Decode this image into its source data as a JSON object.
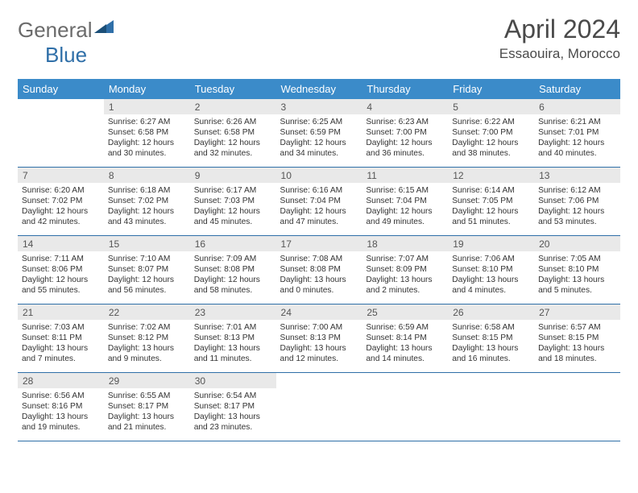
{
  "brand": {
    "part1": "General",
    "part2": "Blue"
  },
  "title": "April 2024",
  "location": "Essaouira, Morocco",
  "colors": {
    "header_bg": "#3b8bc9",
    "header_text": "#ffffff",
    "daynum_bg": "#e9e9e9",
    "border": "#2f6fa8",
    "text": "#333333",
    "title_color": "#4a4a4a"
  },
  "dow": [
    "Sunday",
    "Monday",
    "Tuesday",
    "Wednesday",
    "Thursday",
    "Friday",
    "Saturday"
  ],
  "weeks": [
    [
      {
        "n": "",
        "rise": "",
        "set": "",
        "dl1": "",
        "dl2": "",
        "empty": true
      },
      {
        "n": "1",
        "rise": "Sunrise: 6:27 AM",
        "set": "Sunset: 6:58 PM",
        "dl1": "Daylight: 12 hours",
        "dl2": "and 30 minutes."
      },
      {
        "n": "2",
        "rise": "Sunrise: 6:26 AM",
        "set": "Sunset: 6:58 PM",
        "dl1": "Daylight: 12 hours",
        "dl2": "and 32 minutes."
      },
      {
        "n": "3",
        "rise": "Sunrise: 6:25 AM",
        "set": "Sunset: 6:59 PM",
        "dl1": "Daylight: 12 hours",
        "dl2": "and 34 minutes."
      },
      {
        "n": "4",
        "rise": "Sunrise: 6:23 AM",
        "set": "Sunset: 7:00 PM",
        "dl1": "Daylight: 12 hours",
        "dl2": "and 36 minutes."
      },
      {
        "n": "5",
        "rise": "Sunrise: 6:22 AM",
        "set": "Sunset: 7:00 PM",
        "dl1": "Daylight: 12 hours",
        "dl2": "and 38 minutes."
      },
      {
        "n": "6",
        "rise": "Sunrise: 6:21 AM",
        "set": "Sunset: 7:01 PM",
        "dl1": "Daylight: 12 hours",
        "dl2": "and 40 minutes."
      }
    ],
    [
      {
        "n": "7",
        "rise": "Sunrise: 6:20 AM",
        "set": "Sunset: 7:02 PM",
        "dl1": "Daylight: 12 hours",
        "dl2": "and 42 minutes."
      },
      {
        "n": "8",
        "rise": "Sunrise: 6:18 AM",
        "set": "Sunset: 7:02 PM",
        "dl1": "Daylight: 12 hours",
        "dl2": "and 43 minutes."
      },
      {
        "n": "9",
        "rise": "Sunrise: 6:17 AM",
        "set": "Sunset: 7:03 PM",
        "dl1": "Daylight: 12 hours",
        "dl2": "and 45 minutes."
      },
      {
        "n": "10",
        "rise": "Sunrise: 6:16 AM",
        "set": "Sunset: 7:04 PM",
        "dl1": "Daylight: 12 hours",
        "dl2": "and 47 minutes."
      },
      {
        "n": "11",
        "rise": "Sunrise: 6:15 AM",
        "set": "Sunset: 7:04 PM",
        "dl1": "Daylight: 12 hours",
        "dl2": "and 49 minutes."
      },
      {
        "n": "12",
        "rise": "Sunrise: 6:14 AM",
        "set": "Sunset: 7:05 PM",
        "dl1": "Daylight: 12 hours",
        "dl2": "and 51 minutes."
      },
      {
        "n": "13",
        "rise": "Sunrise: 6:12 AM",
        "set": "Sunset: 7:06 PM",
        "dl1": "Daylight: 12 hours",
        "dl2": "and 53 minutes."
      }
    ],
    [
      {
        "n": "14",
        "rise": "Sunrise: 7:11 AM",
        "set": "Sunset: 8:06 PM",
        "dl1": "Daylight: 12 hours",
        "dl2": "and 55 minutes."
      },
      {
        "n": "15",
        "rise": "Sunrise: 7:10 AM",
        "set": "Sunset: 8:07 PM",
        "dl1": "Daylight: 12 hours",
        "dl2": "and 56 minutes."
      },
      {
        "n": "16",
        "rise": "Sunrise: 7:09 AM",
        "set": "Sunset: 8:08 PM",
        "dl1": "Daylight: 12 hours",
        "dl2": "and 58 minutes."
      },
      {
        "n": "17",
        "rise": "Sunrise: 7:08 AM",
        "set": "Sunset: 8:08 PM",
        "dl1": "Daylight: 13 hours",
        "dl2": "and 0 minutes."
      },
      {
        "n": "18",
        "rise": "Sunrise: 7:07 AM",
        "set": "Sunset: 8:09 PM",
        "dl1": "Daylight: 13 hours",
        "dl2": "and 2 minutes."
      },
      {
        "n": "19",
        "rise": "Sunrise: 7:06 AM",
        "set": "Sunset: 8:10 PM",
        "dl1": "Daylight: 13 hours",
        "dl2": "and 4 minutes."
      },
      {
        "n": "20",
        "rise": "Sunrise: 7:05 AM",
        "set": "Sunset: 8:10 PM",
        "dl1": "Daylight: 13 hours",
        "dl2": "and 5 minutes."
      }
    ],
    [
      {
        "n": "21",
        "rise": "Sunrise: 7:03 AM",
        "set": "Sunset: 8:11 PM",
        "dl1": "Daylight: 13 hours",
        "dl2": "and 7 minutes."
      },
      {
        "n": "22",
        "rise": "Sunrise: 7:02 AM",
        "set": "Sunset: 8:12 PM",
        "dl1": "Daylight: 13 hours",
        "dl2": "and 9 minutes."
      },
      {
        "n": "23",
        "rise": "Sunrise: 7:01 AM",
        "set": "Sunset: 8:13 PM",
        "dl1": "Daylight: 13 hours",
        "dl2": "and 11 minutes."
      },
      {
        "n": "24",
        "rise": "Sunrise: 7:00 AM",
        "set": "Sunset: 8:13 PM",
        "dl1": "Daylight: 13 hours",
        "dl2": "and 12 minutes."
      },
      {
        "n": "25",
        "rise": "Sunrise: 6:59 AM",
        "set": "Sunset: 8:14 PM",
        "dl1": "Daylight: 13 hours",
        "dl2": "and 14 minutes."
      },
      {
        "n": "26",
        "rise": "Sunrise: 6:58 AM",
        "set": "Sunset: 8:15 PM",
        "dl1": "Daylight: 13 hours",
        "dl2": "and 16 minutes."
      },
      {
        "n": "27",
        "rise": "Sunrise: 6:57 AM",
        "set": "Sunset: 8:15 PM",
        "dl1": "Daylight: 13 hours",
        "dl2": "and 18 minutes."
      }
    ],
    [
      {
        "n": "28",
        "rise": "Sunrise: 6:56 AM",
        "set": "Sunset: 8:16 PM",
        "dl1": "Daylight: 13 hours",
        "dl2": "and 19 minutes."
      },
      {
        "n": "29",
        "rise": "Sunrise: 6:55 AM",
        "set": "Sunset: 8:17 PM",
        "dl1": "Daylight: 13 hours",
        "dl2": "and 21 minutes."
      },
      {
        "n": "30",
        "rise": "Sunrise: 6:54 AM",
        "set": "Sunset: 8:17 PM",
        "dl1": "Daylight: 13 hours",
        "dl2": "and 23 minutes."
      },
      {
        "n": "",
        "rise": "",
        "set": "",
        "dl1": "",
        "dl2": "",
        "empty": true
      },
      {
        "n": "",
        "rise": "",
        "set": "",
        "dl1": "",
        "dl2": "",
        "empty": true
      },
      {
        "n": "",
        "rise": "",
        "set": "",
        "dl1": "",
        "dl2": "",
        "empty": true
      },
      {
        "n": "",
        "rise": "",
        "set": "",
        "dl1": "",
        "dl2": "",
        "empty": true
      }
    ]
  ]
}
